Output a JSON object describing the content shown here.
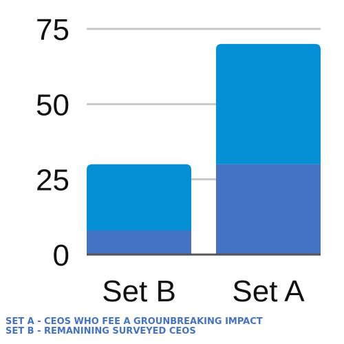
{
  "chart_data": {
    "type": "bar",
    "stacked": true,
    "categories": [
      "Set B",
      "Set A"
    ],
    "series": [
      {
        "values": [
          8,
          30
        ],
        "color": "#4472c4"
      },
      {
        "values": [
          22,
          40
        ],
        "color": "#0590d6"
      }
    ],
    "yticks": [
      0,
      25,
      50,
      75
    ],
    "ylim": [
      0,
      75
    ],
    "grid": true
  },
  "footnotes": {
    "set_a": "SET A - CEOS WHO FEE A GROUNBREAKING IMPACT",
    "set_b": "SET B - REMANINING SURVEYED CEOS",
    "color": "#4472c4"
  }
}
